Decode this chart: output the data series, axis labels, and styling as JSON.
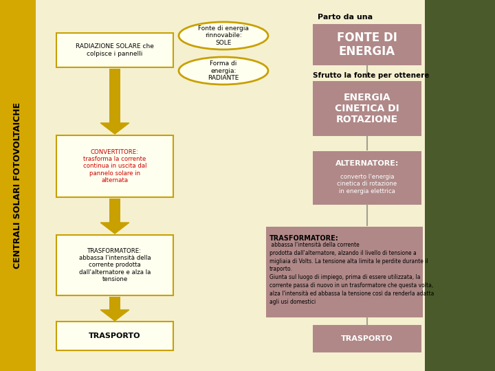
{
  "bg_color": "#f5f0d0",
  "sidebar_color": "#d4a800",
  "sidebar_text": "CENTRALI SOLARI FOTOVOLTAICHE",
  "sidebar_text_color": "#000000",
  "right_panel_color": "#4a5a2a",
  "main_bg": "#f5f0d0",
  "ellipse1_text": "Fonte di energia\nrinnovabile:\nSOLE",
  "ellipse2_text": "Forma di\nenergia:\nRADIANTE",
  "ellipse_edge_color": "#c8a000",
  "ellipse_face_color": "#fffff0",
  "box_radiazione_text": "RADIAZIONE SOLARE che\ncolpisce i pannelli",
  "box_radiazione_edge": "#c8a000",
  "box_radiazione_face": "#fffff0",
  "box_fonte_text": "FONTE DI\nENERGIA",
  "box_fonte_face": "#b08888",
  "box_energia_text": "ENERGIA\nCINETICA DI\nROTAZIONE",
  "box_energia_face": "#b08888",
  "box_alternatore_title": "ALTERNATORE:",
  "box_alternatore_body": "converto l'energia\ncinetica di rotazione\nin energia elettrica",
  "box_alternatore_face": "#b08888",
  "box_convertitore_text": "CONVERTITORE:\ntrasforma la corrente\ncontinua in uscita dal\npannelo solare in\nalternata",
  "box_convertitore_edge": "#c8a000",
  "box_convertitore_face": "#fffff0",
  "box_convertitore_text_color": "#cc0000",
  "box_trasformatore_left_text": "TRASFORMATORE:\nabbassa l'intensità della\ncorrente prodotta\ndall'alternatore e alza la\ntensione",
  "box_trasformatore_left_edge": "#c8a000",
  "box_trasformatore_left_face": "#fffff0",
  "box_trasformatore_right_title": "TRASFORMATORE:",
  "box_trasformatore_right_body": " abbassa l'intensità della corrente\nprodotta dall'alternatore, alzando il livello di tensione a\nmigliaia di Volts. La tensione alta limita le perdite durante il\ntraporto.\nGiunta sul luogo di impiego, prima di essere utilizzata, la\ncorrente passa di nuovo in un trasformatore che questa volta,\nalza l'intensità ed abbassa la tensione così da renderla adatta\nagli usi domestici",
  "box_trasformatore_right_face": "#b08888",
  "box_trasporto_left_text": "TRASPORTO",
  "box_trasporto_left_edge": "#c8a000",
  "box_trasporto_left_face": "#fffff0",
  "box_trasporto_right_text": "TRASPORTO",
  "box_trasporto_right_face": "#b08888",
  "label_parto": "Parto da una",
  "label_sfrutto": "Sfrutto la fonte per ottenere",
  "arrow_color": "#c8a000",
  "line_color": "#a0a090"
}
